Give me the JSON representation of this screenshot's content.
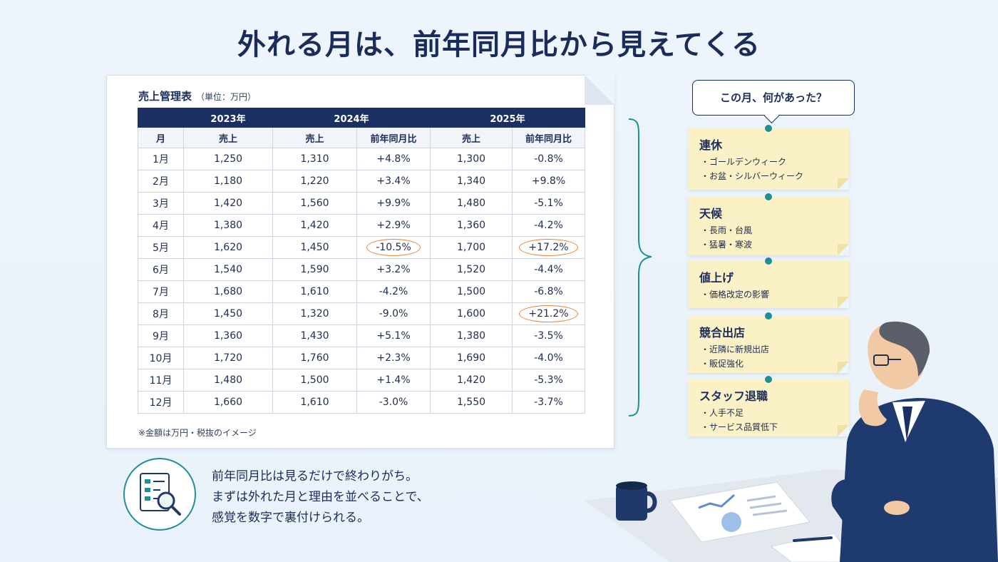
{
  "title": "外れる月は、前年同月比から見えてくる",
  "sheet": {
    "title": "売上管理表",
    "unit": "（単位：万円）",
    "years": [
      "2023年",
      "2024年",
      "2025年"
    ],
    "columns": [
      "月",
      "売上",
      "売上",
      "前年同月比",
      "売上",
      "前年同月比"
    ],
    "rows": [
      {
        "month": "1月",
        "s2023": "1,250",
        "s2024": "1,310",
        "y2024": "+4.8%",
        "s2025": "1,300",
        "y2025": "-0.8%"
      },
      {
        "month": "2月",
        "s2023": "1,180",
        "s2024": "1,220",
        "y2024": "+3.4%",
        "s2025": "1,340",
        "y2025": "+9.8%"
      },
      {
        "month": "3月",
        "s2023": "1,420",
        "s2024": "1,560",
        "y2024": "+9.9%",
        "s2025": "1,480",
        "y2025": "-5.1%"
      },
      {
        "month": "4月",
        "s2023": "1,380",
        "s2024": "1,420",
        "y2024": "+2.9%",
        "s2025": "1,360",
        "y2025": "-4.2%"
      },
      {
        "month": "5月",
        "s2023": "1,620",
        "s2024": "1,450",
        "y2024": "-10.5%",
        "s2025": "1,700",
        "y2025": "+17.2%"
      },
      {
        "month": "6月",
        "s2023": "1,540",
        "s2024": "1,590",
        "y2024": "+3.2%",
        "s2025": "1,520",
        "y2025": "-4.4%"
      },
      {
        "month": "7月",
        "s2023": "1,680",
        "s2024": "1,610",
        "y2024": "-4.2%",
        "s2025": "1,500",
        "y2025": "-6.8%"
      },
      {
        "month": "8月",
        "s2023": "1,450",
        "s2024": "1,320",
        "y2024": "-9.0%",
        "s2025": "1,600",
        "y2025": "+21.2%"
      },
      {
        "month": "9月",
        "s2023": "1,360",
        "s2024": "1,430",
        "y2024": "+5.1%",
        "s2025": "1,380",
        "y2025": "-3.5%"
      },
      {
        "month": "10月",
        "s2023": "1,720",
        "s2024": "1,760",
        "y2024": "+2.3%",
        "s2025": "1,690",
        "y2025": "-4.0%"
      },
      {
        "month": "11月",
        "s2023": "1,480",
        "s2024": "1,500",
        "y2024": "+1.4%",
        "s2025": "1,420",
        "y2025": "-5.3%"
      },
      {
        "month": "12月",
        "s2023": "1,660",
        "s2024": "1,610",
        "y2024": "-3.0%",
        "s2025": "1,550",
        "y2025": "-3.7%"
      }
    ],
    "note": "※金額は万円・税抜のイメージ"
  },
  "bubble": "この月、何があった？",
  "notes": [
    {
      "title": "連休",
      "items": [
        "・ゴールデンウィーク",
        "・お盆・シルバーウィーク"
      ]
    },
    {
      "title": "天候",
      "items": [
        "・長雨・台風",
        "・猛暑・寒波"
      ]
    },
    {
      "title": "値上げ",
      "items": [
        "・価格改定の影響"
      ]
    },
    {
      "title": "競合出店",
      "items": [
        "・近隣に新規出店",
        "・販促強化"
      ]
    },
    {
      "title": "スタッフ退職",
      "items": [
        "・人手不足",
        "・サービス品質低下"
      ]
    }
  ],
  "tip": {
    "lines": [
      "前年同月比は見るだけで終わりがち。",
      "まずは外れた月と理由を並べることで、",
      "感覚を数字で裏付けられる。"
    ]
  },
  "colors": {
    "navy": "#1b2f62",
    "accent": "#1f8f95",
    "highlight": "#e8843a",
    "note": "#fbf1c6"
  },
  "icons": [
    "document-search-icon",
    "coffee-mug-icon",
    "report-paper-icon",
    "pen-icon"
  ]
}
